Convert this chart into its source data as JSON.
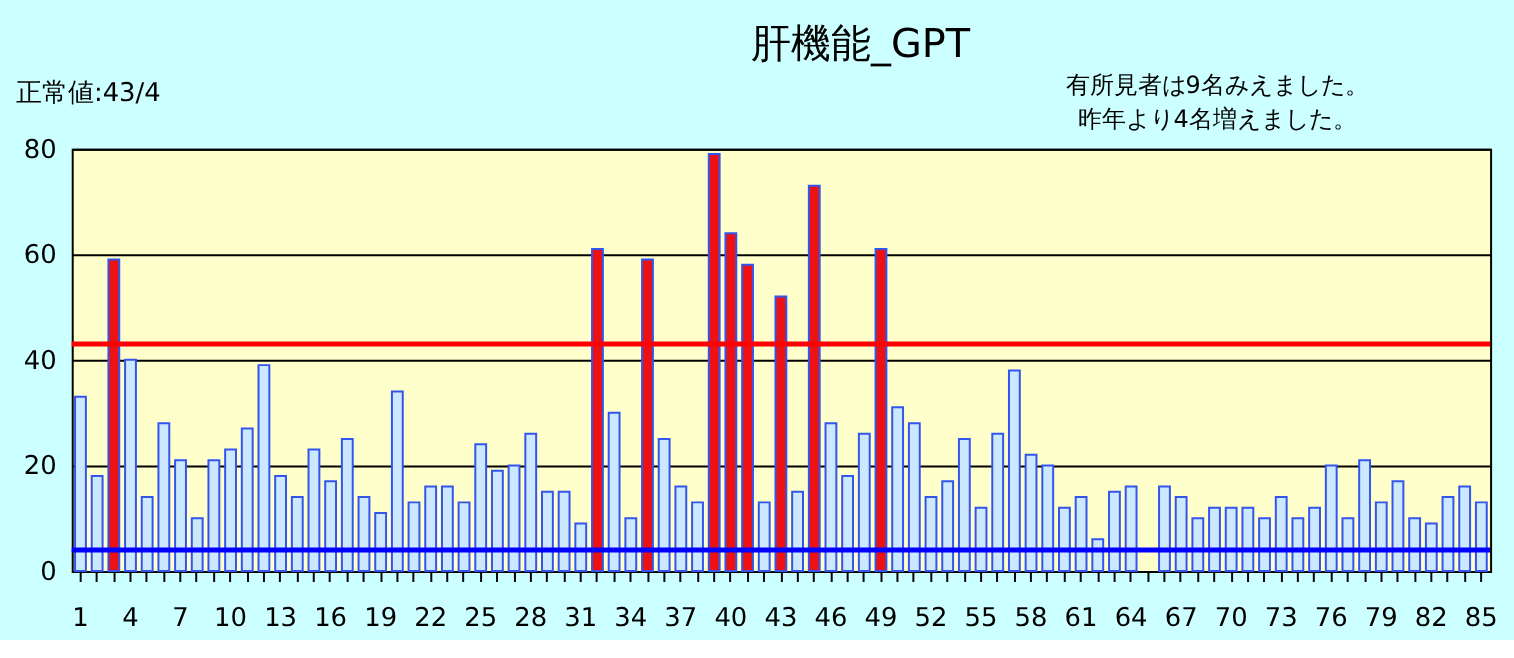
{
  "chart_data": {
    "type": "bar",
    "title": "肝機能_GPT",
    "categories": [
      "1",
      null,
      null,
      "4",
      null,
      null,
      "7",
      null,
      null,
      "10",
      null,
      null,
      "13",
      null,
      null,
      "16",
      null,
      null,
      "19",
      null,
      null,
      "22",
      null,
      null,
      "25",
      null,
      null,
      "28",
      null,
      null,
      "31",
      null,
      null,
      "34",
      null,
      null,
      "37",
      null,
      null,
      "40",
      null,
      null,
      "43",
      null,
      null,
      "46",
      null,
      null,
      "49",
      null,
      null,
      "52",
      null,
      null,
      "55",
      null,
      null,
      "58",
      null,
      null,
      "61",
      null,
      null,
      "64",
      null,
      null,
      "67",
      null,
      null,
      "70",
      null,
      null,
      "73",
      null,
      null,
      "76",
      null,
      null,
      "79",
      null,
      null,
      "82",
      null,
      null,
      "85"
    ],
    "values": [
      33,
      18,
      59,
      40,
      14,
      28,
      21,
      10,
      21,
      23,
      27,
      39,
      18,
      14,
      23,
      17,
      25,
      14,
      11,
      34,
      13,
      16,
      16,
      13,
      24,
      19,
      20,
      26,
      15,
      15,
      9,
      61,
      30,
      10,
      59,
      25,
      16,
      13,
      79,
      64,
      58,
      13,
      52,
      15,
      73,
      28,
      18,
      26,
      61,
      31,
      28,
      14,
      17,
      25,
      12,
      26,
      38,
      22,
      20,
      12,
      14,
      6,
      15,
      16,
      null,
      16,
      14,
      10,
      12,
      12,
      12,
      10,
      14,
      10,
      12,
      20,
      10,
      21,
      13,
      17,
      10,
      9,
      14,
      16,
      13
    ],
    "colors": [
      "#cce8ff",
      "#cce8ff",
      "#ee1111",
      "#cce8ff",
      "#cce8ff",
      "#cce8ff",
      "#cce8ff",
      "#cce8ff",
      "#cce8ff",
      "#cce8ff",
      "#cce8ff",
      "#cce8ff",
      "#cce8ff",
      "#cce8ff",
      "#cce8ff",
      "#cce8ff",
      "#cce8ff",
      "#cce8ff",
      "#cce8ff",
      "#cce8ff",
      "#cce8ff",
      "#cce8ff",
      "#cce8ff",
      "#cce8ff",
      "#cce8ff",
      "#cce8ff",
      "#cce8ff",
      "#cce8ff",
      "#cce8ff",
      "#cce8ff",
      "#cce8ff",
      "#ee1111",
      "#cce8ff",
      "#cce8ff",
      "#ee1111",
      "#cce8ff",
      "#cce8ff",
      "#cce8ff",
      "#ee1111",
      "#ee1111",
      "#ee1111",
      "#cce8ff",
      "#ee1111",
      "#cce8ff",
      "#ee1111",
      "#cce8ff",
      "#cce8ff",
      "#cce8ff",
      "#ee1111",
      "#cce8ff",
      "#cce8ff",
      "#cce8ff",
      "#cce8ff",
      "#cce8ff",
      "#cce8ff",
      "#cce8ff",
      "#cce8ff",
      "#cce8ff",
      "#cce8ff",
      "#cce8ff",
      "#cce8ff",
      "#cce8ff",
      "#cce8ff",
      "#cce8ff",
      "#cce8ff",
      "#cce8ff",
      "#cce8ff",
      "#cce8ff",
      "#cce8ff",
      "#cce8ff",
      "#cce8ff",
      "#cce8ff",
      "#cce8ff",
      "#cce8ff",
      "#cce8ff",
      "#cce8ff",
      "#cce8ff",
      "#cce8ff",
      "#cce8ff",
      "#cce8ff",
      "#cce8ff",
      "#cce8ff",
      "#cce8ff",
      "#cce8ff",
      "#cce8ff"
    ],
    "ylim": [
      0,
      80
    ],
    "yticks": [
      0,
      20,
      40,
      60,
      80
    ],
    "grid": "y",
    "ref_lines": [
      {
        "axis": "y",
        "value": 43,
        "color": "#ff0000"
      },
      {
        "axis": "y",
        "value": 4,
        "color": "#0000ff"
      }
    ],
    "annotations": [
      "正常値:43/4",
      "有所見者は9名みえました。",
      "昨年より4名増えました。"
    ]
  }
}
